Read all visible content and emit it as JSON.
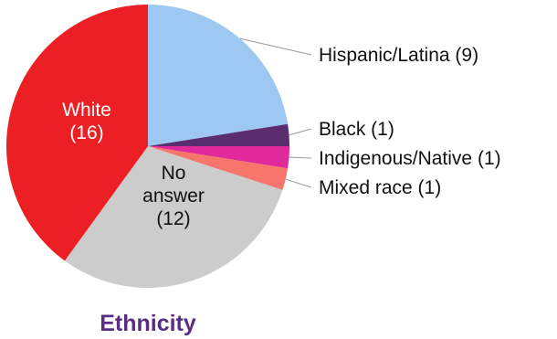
{
  "chart_data": {
    "type": "pie",
    "title": "Ethnicity",
    "slices": [
      {
        "label": "Hispanic/Latina (9)",
        "value": 9,
        "color": "#9dc8f2"
      },
      {
        "label": "Black (1)",
        "value": 1,
        "color": "#5a2d6e"
      },
      {
        "label": "Indigenous/Native (1)",
        "value": 1,
        "color": "#e0299b"
      },
      {
        "label": "Mixed race (1)",
        "value": 1,
        "color": "#f7756a"
      },
      {
        "label": "No answer (12)",
        "value": 12,
        "color": "#cccccc",
        "inside_lines": [
          "No",
          "answer",
          "(12)"
        ]
      },
      {
        "label": "White (16)",
        "value": 16,
        "color": "#ec2024",
        "inside_lines": [
          "White",
          "(16)"
        ]
      }
    ],
    "title_color": "#5a2d82",
    "legend": "callout-right"
  }
}
